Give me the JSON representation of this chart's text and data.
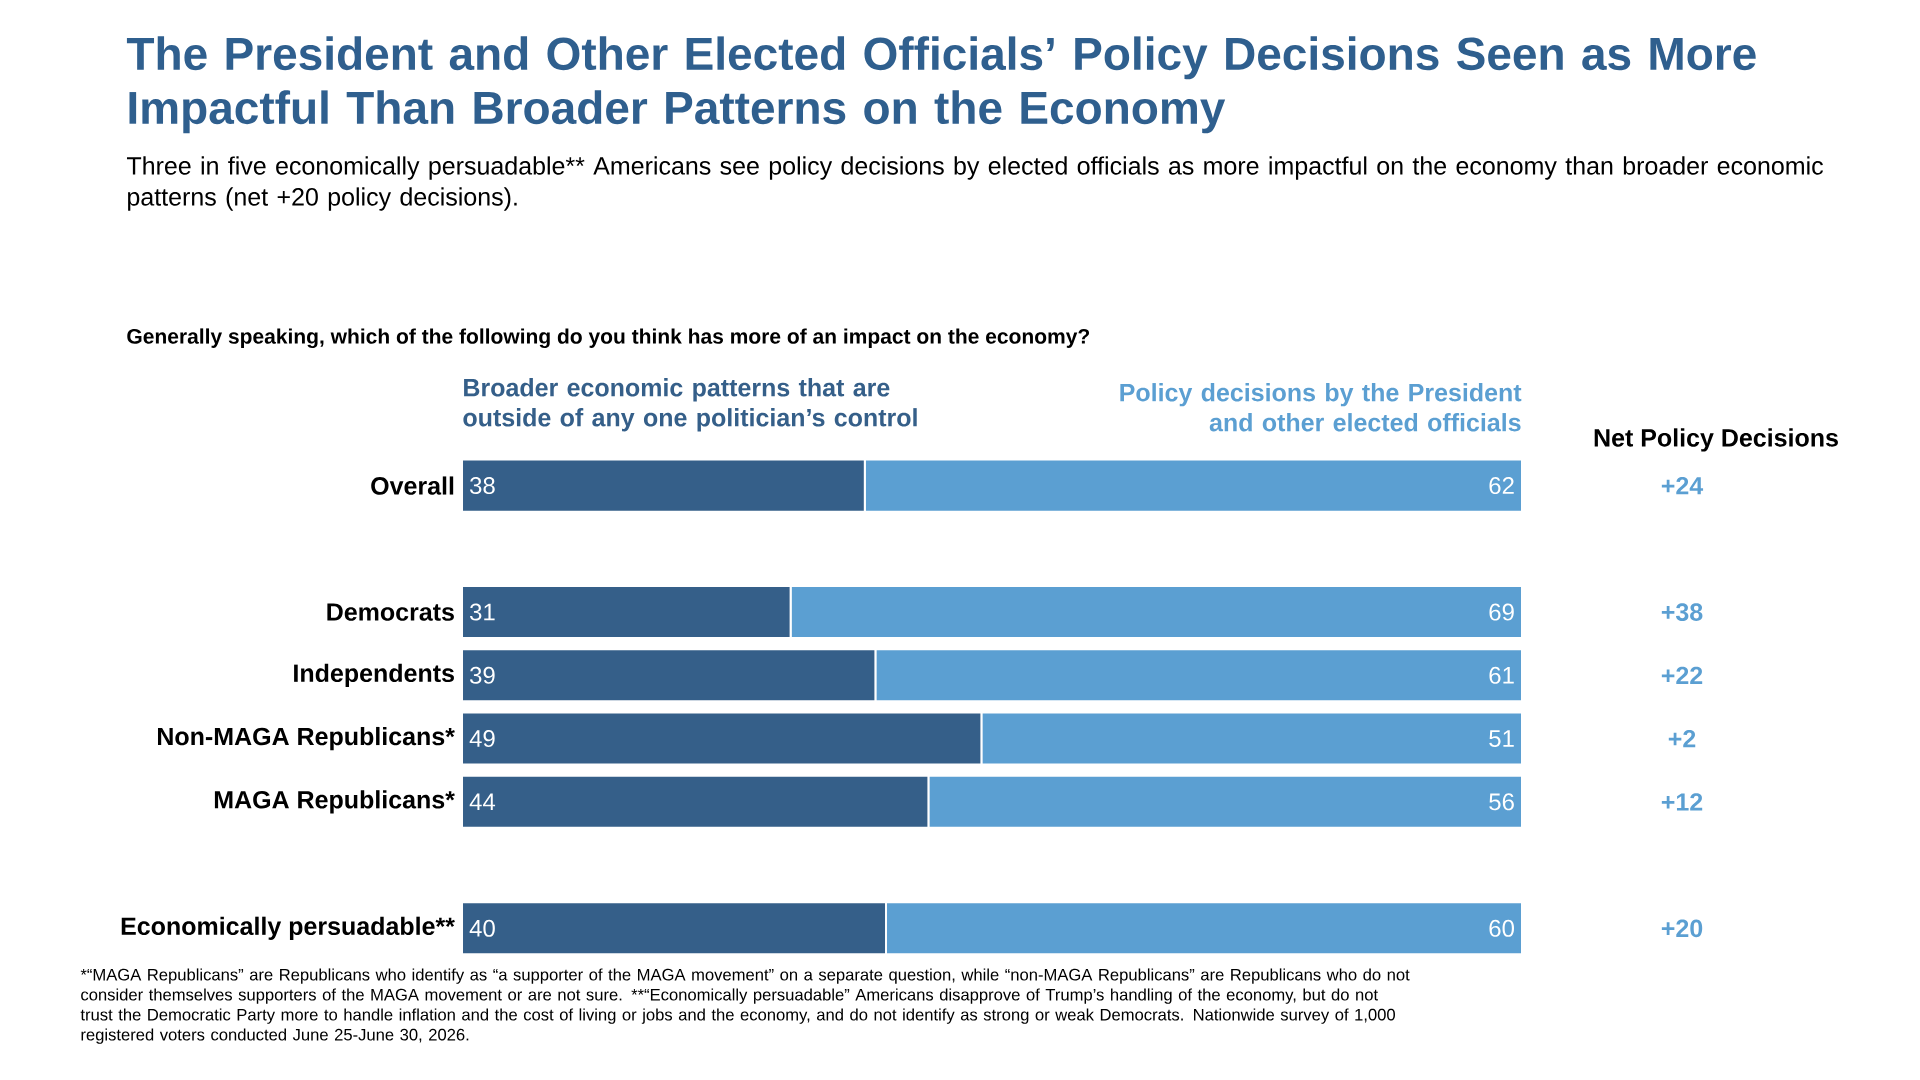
{
  "chart_data": {
    "type": "bar",
    "orientation": "horizontal",
    "stacked": true,
    "data_labels": true,
    "title": "The President and Other Elected Officials’ Policy Decisions Seen as More Impactful Than Broader Patterns on the Economy",
    "subtitle": "Three in five economically persuadable** Americans see policy decisions by elected officials as more impactful on the economy than broader economic patterns (net +20 policy decisions).",
    "categories": [
      "Overall",
      null,
      "Democrats",
      "Independents",
      "Non-MAGA Republicans*",
      "MAGA Republicans*",
      null,
      "Economically persuadable**"
    ],
    "series": [
      {
        "name": "Broader economic patterns that are outside of any one politician’s control",
        "color": "#355f89",
        "values": [
          38,
          null,
          31,
          39,
          49,
          44,
          null,
          40
        ]
      },
      {
        "name": "Policy decisions by the President and other elected officials",
        "color": "#5b9fd2",
        "values": [
          62,
          null,
          69,
          61,
          51,
          56,
          null,
          60
        ]
      }
    ],
    "annotations": [
      "Generally speaking, which of the following do you think has more of an impact on the economy?",
      "Net Policy Decisions",
      "+24",
      "+38",
      "+22",
      "+2",
      "+12",
      "+20",
      "*“MAGA Republicans” are Republicans who identify as “a supporter of the MAGA movement” on a separate question, while “non-MAGA Republicans” are Republicans who do not consider themselves supporters of the MAGA movement or are not sure. **“Economically persuadable” Americans disapprove of Trump’s handling of the economy, but do not trust the Democratic Party more to handle inflation and the cost of living or jobs and the economy, and do not identify as strong or weak Democrats. Nationwide survey of 1,000 registered voters conducted June 25-June 30, 2026."
    ]
  }
}
